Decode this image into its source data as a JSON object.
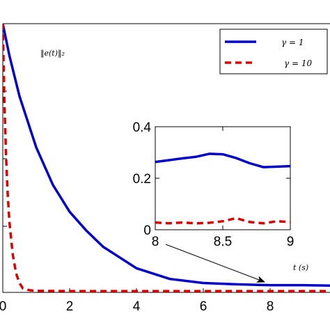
{
  "chart_data": [
    {
      "type": "line",
      "xlim": [
        0,
        10
      ],
      "x_ticks": [
        0,
        2,
        4,
        6,
        8
      ],
      "annotation": "‖e(t)‖₂",
      "xlabel": "t (s)",
      "legend_position": "top-right",
      "series": [
        {
          "name": "γ = 1",
          "color": "#0000cc",
          "style": "solid",
          "x": [
            0,
            0.2,
            0.5,
            1,
            1.5,
            2,
            2.5,
            3,
            3.5,
            4,
            5,
            6,
            7,
            8,
            9,
            10
          ],
          "y": [
            1.0,
            0.88,
            0.73,
            0.54,
            0.4,
            0.3,
            0.23,
            0.17,
            0.13,
            0.09,
            0.05,
            0.035,
            0.03,
            0.027,
            0.027,
            0.025
          ]
        },
        {
          "name": "γ = 10",
          "color": "#dd0000",
          "style": "dashed",
          "x": [
            0,
            0.05,
            0.1,
            0.15,
            0.2,
            0.3,
            0.4,
            0.5,
            0.6,
            0.8,
            1,
            2,
            4,
            6,
            8,
            10
          ],
          "y": [
            1.0,
            0.7,
            0.5,
            0.36,
            0.26,
            0.14,
            0.07,
            0.035,
            0.015,
            0.008,
            0.006,
            0.005,
            0.005,
            0.005,
            0.005,
            0.005
          ]
        }
      ]
    },
    {
      "type": "line",
      "role": "inset",
      "xlim": [
        8,
        9
      ],
      "ylim": [
        0,
        0.4
      ],
      "x_ticks": [
        8,
        8.5,
        9
      ],
      "x_tick_labels": [
        "8",
        "8.5",
        "9"
      ],
      "y_ticks": [
        0,
        0.2,
        0.4
      ],
      "y_tick_labels": [
        "0",
        "0.2",
        "0.4"
      ],
      "series": [
        {
          "color": "#0000cc",
          "style": "solid",
          "x": [
            8,
            8.1,
            8.2,
            8.3,
            8.4,
            8.5,
            8.6,
            8.7,
            8.8,
            8.9,
            9
          ],
          "y": [
            0.263,
            0.27,
            0.277,
            0.283,
            0.295,
            0.293,
            0.278,
            0.258,
            0.243,
            0.245,
            0.247
          ]
        },
        {
          "color": "#dd0000",
          "style": "dashed",
          "x": [
            8,
            8.1,
            8.2,
            8.3,
            8.4,
            8.5,
            8.6,
            8.7,
            8.8,
            8.9,
            9
          ],
          "y": [
            0.028,
            0.025,
            0.028,
            0.025,
            0.027,
            0.033,
            0.045,
            0.03,
            0.025,
            0.033,
            0.03
          ]
        }
      ]
    }
  ],
  "legend": {
    "entries": [
      "γ = 1",
      "γ = 10"
    ]
  }
}
